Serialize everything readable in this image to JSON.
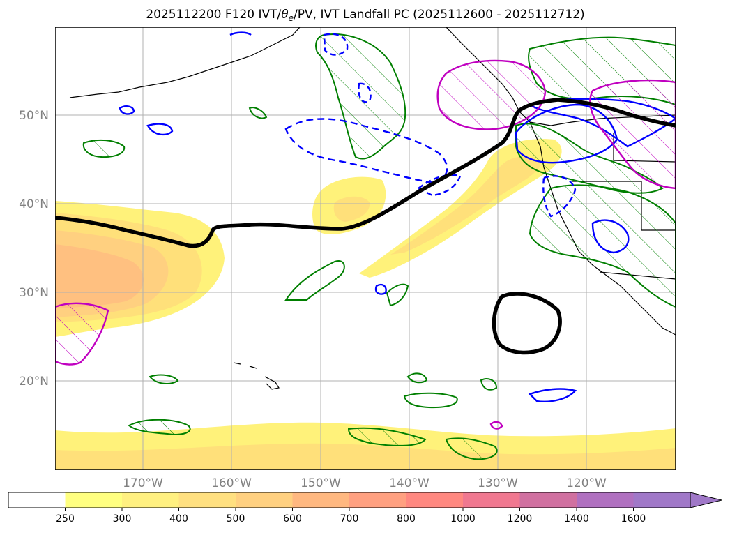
{
  "title": {
    "prefix": "2025112200 F120 IVT/",
    "theta": "θ",
    "sub": "e",
    "suffix": "/PV, IVT Landfall PC (2025112600 - 2025112712)"
  },
  "map": {
    "lon_ticks": [
      "170°W",
      "160°W",
      "150°W",
      "140°W",
      "130°W",
      "120°W"
    ],
    "lat_ticks": [
      "50°N",
      "40°N",
      "30°N",
      "20°N"
    ]
  },
  "colorbar": {
    "labels": [
      "250",
      "300",
      "400",
      "500",
      "600",
      "700",
      "800",
      "1000",
      "1200",
      "1400",
      "1600"
    ],
    "colors": [
      "#ffffff",
      "#ffff80",
      "#fff080",
      "#ffe080",
      "#ffd080",
      "#ffb880",
      "#ffa080",
      "#ff8880",
      "#f07890",
      "#d070a0",
      "#b070c0",
      "#a078c8"
    ],
    "extend_color": "#a078c8"
  },
  "colors": {
    "ivt_light": "#fff27a",
    "ivt_mid": "#ffe07a",
    "ivt_orange": "#ffc880",
    "ivt_deep": "#ffb07a",
    "pv_green": "#007f00",
    "theta_blue": "#0000ff",
    "landfall_magenta": "#c000c0",
    "jet_black": "#000000"
  }
}
